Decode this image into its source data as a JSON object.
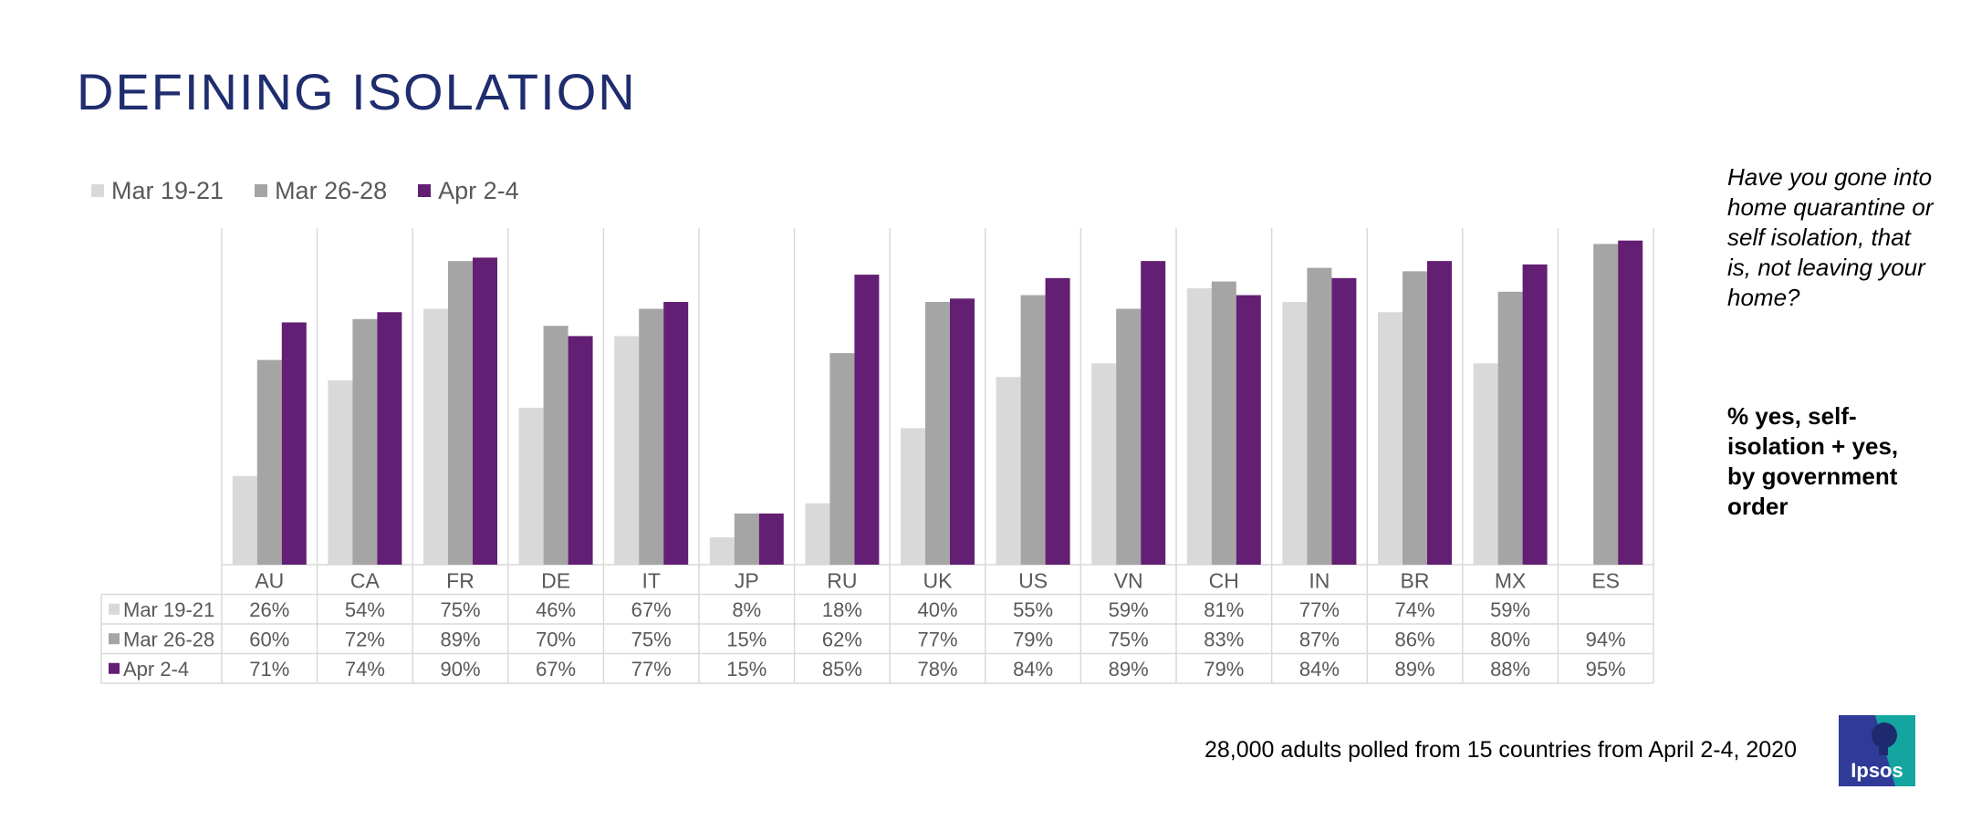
{
  "title": "DEFINING ISOLATION",
  "question": "Have you gone into home quarantine or self isolation, that is, not leaving your home?",
  "measure": "% yes, self-isolation + yes, by government order",
  "footnote": "28,000 adults polled from 15 countries from April 2-4, 2020",
  "logo_text": "Ipsos",
  "colors": {
    "title": "#1f2d6e",
    "series": [
      "#d9d9d9",
      "#a5a5a5",
      "#621f73"
    ],
    "grid": "#d9d9d9",
    "table_text": "#595959",
    "logo_blue": "#2f3b97",
    "logo_teal": "#14a5a0"
  },
  "chart_data": {
    "type": "bar",
    "legend_position": "top-left",
    "grid": true,
    "ylim": [
      0,
      100
    ],
    "categories": [
      "AU",
      "CA",
      "FR",
      "DE",
      "IT",
      "JP",
      "RU",
      "UK",
      "US",
      "VN",
      "CH",
      "IN",
      "BR",
      "MX",
      "ES"
    ],
    "series": [
      {
        "name": "Mar 19-21",
        "values": [
          26,
          54,
          75,
          46,
          67,
          8,
          18,
          40,
          55,
          59,
          81,
          77,
          74,
          59,
          null
        ],
        "labels": [
          "26%",
          "54%",
          "75%",
          "46%",
          "67%",
          "8%",
          "18%",
          "40%",
          "55%",
          "59%",
          "81%",
          "77%",
          "74%",
          "59%",
          ""
        ]
      },
      {
        "name": "Mar 26-28",
        "values": [
          60,
          72,
          89,
          70,
          75,
          15,
          62,
          77,
          79,
          75,
          83,
          87,
          86,
          80,
          94
        ],
        "labels": [
          "60%",
          "72%",
          "89%",
          "70%",
          "75%",
          "15%",
          "62%",
          "77%",
          "79%",
          "75%",
          "83%",
          "87%",
          "86%",
          "80%",
          "94%"
        ]
      },
      {
        "name": "Apr 2-4",
        "values": [
          71,
          74,
          90,
          67,
          77,
          15,
          85,
          78,
          84,
          89,
          79,
          84,
          89,
          88,
          95
        ],
        "labels": [
          "71%",
          "74%",
          "90%",
          "67%",
          "77%",
          "15%",
          "85%",
          "78%",
          "84%",
          "89%",
          "79%",
          "84%",
          "89%",
          "88%",
          "95%"
        ]
      }
    ]
  }
}
